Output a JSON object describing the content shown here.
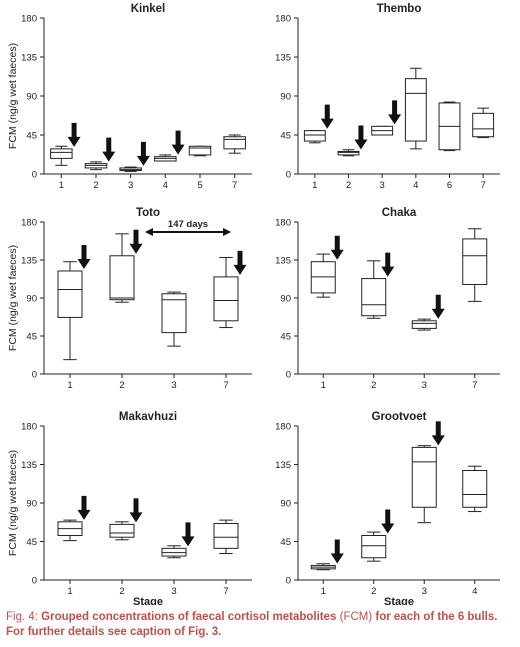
{
  "figure": {
    "caption_prefix": "Fig. 4:",
    "caption_bold_1": "Grouped concentrations of faecal cortisol metabolites",
    "caption_abbr": "(FCM)",
    "caption_bold_2": "for each of the 6 bulls.",
    "caption_line2": "For further details see caption of Fig. 3."
  },
  "chart_data": [
    {
      "type": "box",
      "title": "Kinkel",
      "ylabel": "FCM (ng/g wet faeces)",
      "xlabel": "",
      "ylim": [
        0,
        180
      ],
      "yticks": [
        0,
        45,
        90,
        135,
        180
      ],
      "categories": [
        "1",
        "2",
        "3",
        "4",
        "5",
        "7"
      ],
      "boxes": [
        {
          "min": 10,
          "q1": 18,
          "median": 25,
          "q3": 29,
          "max": 32
        },
        {
          "min": 5,
          "q1": 7,
          "median": 10,
          "q3": 12,
          "max": 14
        },
        {
          "min": 3,
          "q1": 4,
          "median": 5,
          "q3": 7,
          "max": 8
        },
        {
          "min": 15,
          "q1": 15,
          "median": 18,
          "q3": 20,
          "max": 22
        },
        {
          "min": 21,
          "q1": 22,
          "median": 30,
          "q3": 32,
          "max": 32
        },
        {
          "min": 24,
          "q1": 29,
          "median": 40,
          "q3": 43,
          "max": 45
        }
      ],
      "arrows": [
        "1",
        "2",
        "3",
        "4"
      ]
    },
    {
      "type": "box",
      "title": "Thembo",
      "ylabel": "",
      "xlabel": "",
      "ylim": [
        0,
        180
      ],
      "yticks": [
        0,
        45,
        90,
        135,
        180
      ],
      "categories": [
        "1",
        "2",
        "3",
        "4",
        "6",
        "7"
      ],
      "boxes": [
        {
          "min": 36,
          "q1": 38,
          "median": 45,
          "q3": 50,
          "max": 50
        },
        {
          "min": 21,
          "q1": 22,
          "median": 25,
          "q3": 26,
          "max": 28
        },
        {
          "min": 45,
          "q1": 45,
          "median": 50,
          "q3": 55,
          "max": 55
        },
        {
          "min": 29,
          "q1": 38,
          "median": 93,
          "q3": 110,
          "max": 122
        },
        {
          "min": 27,
          "q1": 28,
          "median": 55,
          "q3": 82,
          "max": 83
        },
        {
          "min": 42,
          "q1": 43,
          "median": 52,
          "q3": 70,
          "max": 76
        }
      ],
      "arrows": [
        "1",
        "2",
        "3"
      ]
    },
    {
      "type": "box",
      "title": "Toto",
      "ylabel": "FCM (ng/g wet faeces)",
      "xlabel": "",
      "ylim": [
        0,
        180
      ],
      "yticks": [
        0,
        45,
        90,
        135,
        180
      ],
      "categories": [
        "1",
        "2",
        "3",
        "7"
      ],
      "boxes": [
        {
          "min": 17,
          "q1": 67,
          "median": 100,
          "q3": 122,
          "max": 133
        },
        {
          "min": 85,
          "q1": 88,
          "median": 90,
          "q3": 140,
          "max": 166
        },
        {
          "min": 33,
          "q1": 49,
          "median": 88,
          "q3": 95,
          "max": 97
        },
        {
          "min": 55,
          "q1": 63,
          "median": 87,
          "q3": 115,
          "max": 138
        }
      ],
      "arrows": [
        "1",
        "2",
        "7"
      ],
      "annotation": "147 days"
    },
    {
      "type": "box",
      "title": "Chaka",
      "ylabel": "",
      "xlabel": "",
      "ylim": [
        0,
        180
      ],
      "yticks": [
        0,
        45,
        90,
        135,
        180
      ],
      "categories": [
        "1",
        "2",
        "3",
        "7"
      ],
      "boxes": [
        {
          "min": 91,
          "q1": 96,
          "median": 115,
          "q3": 133,
          "max": 142
        },
        {
          "min": 66,
          "q1": 69,
          "median": 82,
          "q3": 113,
          "max": 134
        },
        {
          "min": 52,
          "q1": 54,
          "median": 60,
          "q3": 63,
          "max": 65
        },
        {
          "min": 86,
          "q1": 106,
          "median": 140,
          "q3": 160,
          "max": 172
        }
      ],
      "arrows": [
        "1",
        "2",
        "3"
      ]
    },
    {
      "type": "box",
      "title": "Makavhuzi",
      "ylabel": "FCM (ng/g wet faeces)",
      "xlabel": "Stage",
      "ylim": [
        0,
        180
      ],
      "yticks": [
        0,
        45,
        90,
        135,
        180
      ],
      "categories": [
        "1",
        "2",
        "3",
        "7"
      ],
      "boxes": [
        {
          "min": 46,
          "q1": 52,
          "median": 60,
          "q3": 68,
          "max": 70
        },
        {
          "min": 47,
          "q1": 50,
          "median": 55,
          "q3": 65,
          "max": 68
        },
        {
          "min": 26,
          "q1": 28,
          "median": 32,
          "q3": 37,
          "max": 40
        },
        {
          "min": 31,
          "q1": 37,
          "median": 50,
          "q3": 66,
          "max": 70
        }
      ],
      "arrows": [
        "1",
        "2",
        "3"
      ]
    },
    {
      "type": "box",
      "title": "Grootvoet",
      "ylabel": "",
      "xlabel": "Stage",
      "ylim": [
        0,
        180
      ],
      "yticks": [
        0,
        45,
        90,
        135,
        180
      ],
      "categories": [
        "1",
        "2",
        "3",
        "4"
      ],
      "boxes": [
        {
          "min": 12,
          "q1": 13,
          "median": 15,
          "q3": 17,
          "max": 19
        },
        {
          "min": 22,
          "q1": 26,
          "median": 40,
          "q3": 52,
          "max": 56
        },
        {
          "min": 67,
          "q1": 85,
          "median": 138,
          "q3": 155,
          "max": 157
        },
        {
          "min": 80,
          "q1": 85,
          "median": 100,
          "q3": 128,
          "max": 133
        }
      ],
      "arrows": [
        "1",
        "2",
        "3"
      ]
    }
  ]
}
